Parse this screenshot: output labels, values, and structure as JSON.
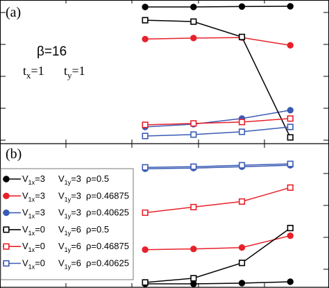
{
  "chart_data": [
    {
      "panel": "(a)",
      "type": "line",
      "annotation": {
        "beta": "β=16",
        "tx": "t",
        "tx_sub": "x",
        "tx_val": "=1",
        "ty": "t",
        "ty_sub": "y",
        "ty_val": "=1"
      },
      "x": [
        1,
        2,
        3,
        4
      ],
      "xlim": [
        -2,
        4.8
      ],
      "ylim": [
        0,
        1
      ],
      "series": [
        {
          "key": "s1",
          "color": "#000000",
          "marker": "filled-circle",
          "values": [
            0.965,
            0.965,
            0.968,
            0.97
          ]
        },
        {
          "key": "s2",
          "color": "#e8202a",
          "marker": "filled-circle",
          "values": [
            0.735,
            0.742,
            0.746,
            0.69
          ]
        },
        {
          "key": "s3",
          "color": "#3a5bb4",
          "marker": "filled-circle",
          "values": [
            0.105,
            0.125,
            0.165,
            0.225
          ]
        },
        {
          "key": "s4",
          "color": "#000000",
          "marker": "open-square",
          "values": [
            0.87,
            0.86,
            0.75,
            0.03
          ]
        },
        {
          "key": "s5",
          "color": "#e8202a",
          "marker": "open-square",
          "values": [
            0.12,
            0.13,
            0.14,
            0.165
          ]
        },
        {
          "key": "s6",
          "color": "#3a5bb4",
          "marker": "open-square",
          "values": [
            0.04,
            0.05,
            0.07,
            0.105
          ]
        }
      ]
    },
    {
      "panel": "(b)",
      "type": "line",
      "x": [
        1,
        2,
        3,
        4
      ],
      "xlim": [
        -2,
        4.8
      ],
      "ylim": [
        0,
        1
      ],
      "series": [
        {
          "key": "s1",
          "color": "#000000",
          "marker": "filled-circle",
          "values": [
            0.01,
            0.01,
            0.015,
            0.025
          ]
        },
        {
          "key": "s2",
          "color": "#e8202a",
          "marker": "filled-circle",
          "values": [
            0.255,
            0.26,
            0.27,
            0.355
          ]
        },
        {
          "key": "s3",
          "color": "#3a5bb4",
          "marker": "filled-circle",
          "values": [
            0.835,
            0.84,
            0.85,
            0.86
          ]
        },
        {
          "key": "s4",
          "color": "#000000",
          "marker": "open-square",
          "values": [
            0.02,
            0.05,
            0.16,
            0.41
          ]
        },
        {
          "key": "s5",
          "color": "#e8202a",
          "marker": "open-square",
          "values": [
            0.52,
            0.56,
            0.6,
            0.7
          ]
        },
        {
          "key": "s6",
          "color": "#3a5bb4",
          "marker": "open-square",
          "values": [
            0.845,
            0.85,
            0.86,
            0.87
          ]
        }
      ],
      "legend": {
        "placement": "left",
        "entries": [
          {
            "key": "s1",
            "v1x": "3",
            "v1y": "3",
            "rho": "ρ=0.5"
          },
          {
            "key": "s2",
            "v1x": "3",
            "v1y": "3",
            "rho": "ρ=0.46875"
          },
          {
            "key": "s3",
            "v1x": "3",
            "v1y": "3",
            "rho": "ρ=0.40625"
          },
          {
            "key": "s4",
            "v1x": "0",
            "v1y": "6",
            "rho": "ρ=0.5"
          },
          {
            "key": "s5",
            "v1x": "0",
            "v1y": "6",
            "rho": "ρ=0.46875"
          },
          {
            "key": "s6",
            "v1x": "0",
            "v1y": "6",
            "rho": "ρ=0.40625"
          }
        ]
      }
    }
  ]
}
